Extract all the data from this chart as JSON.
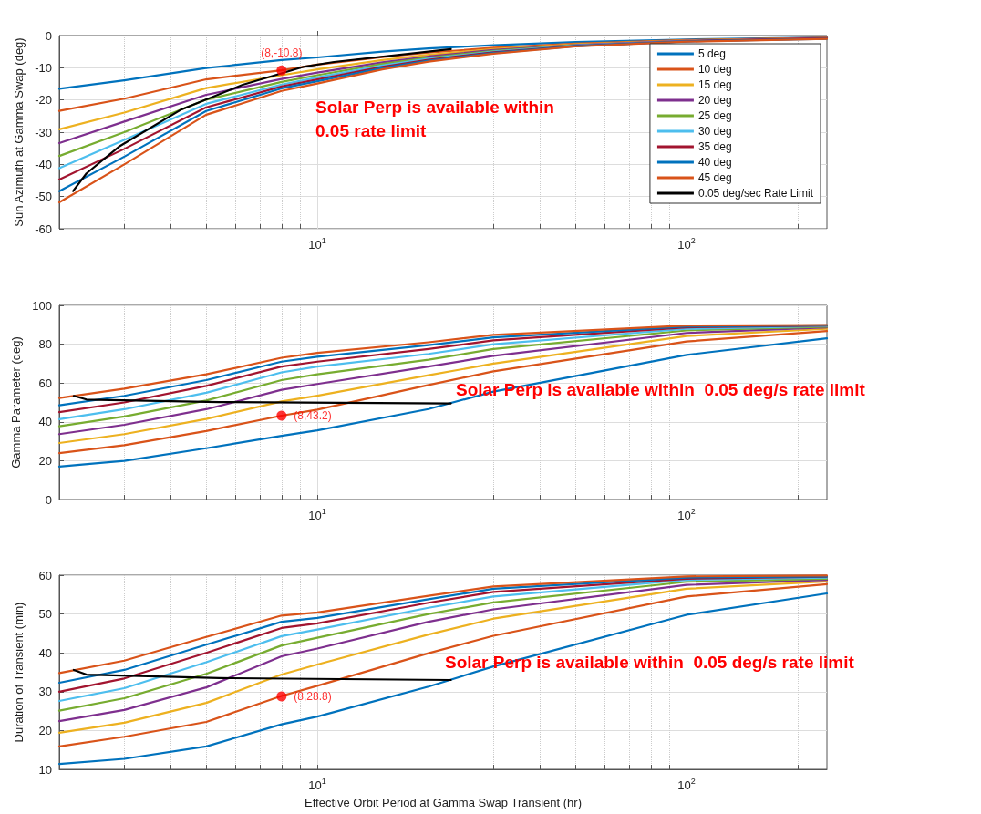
{
  "chart_data": [
    {
      "type": "line",
      "ylabel": "Sun Azimuth at Gamma Swap (deg)",
      "annotations": [
        "Solar Perp is available within\n0.05 rate limit"
      ],
      "log": "x",
      "grid": true,
      "legend": "top right",
      "marker": "none",
      "line_style": "solid",
      "xlim": [
        2,
        240
      ],
      "ylim": [
        -60,
        0
      ],
      "xticks": [
        {
          "value": 2,
          "label": null
        },
        {
          "value": 3,
          "label": null
        },
        {
          "value": 4,
          "label": null
        },
        {
          "value": 5,
          "label": null
        },
        {
          "value": 6,
          "label": null
        },
        {
          "value": 7,
          "label": null
        },
        {
          "value": 8,
          "label": null
        },
        {
          "value": 9,
          "label": null
        },
        {
          "value": 10,
          "label": "10$^{1}$"
        },
        {
          "value": 20,
          "label": null
        },
        {
          "value": 30,
          "label": null
        },
        {
          "value": 40,
          "label": null
        },
        {
          "value": 50,
          "label": null
        },
        {
          "value": 60,
          "label": null
        },
        {
          "value": 70,
          "label": null
        },
        {
          "value": 80,
          "label": null
        },
        {
          "value": 90,
          "label": null
        },
        {
          "value": 100,
          "label": "10$^{2}$"
        },
        {
          "value": 200,
          "label": null
        }
      ],
      "yticks": [
        -60,
        -50,
        -40,
        -30,
        -20,
        -10,
        0
      ],
      "x": [
        2,
        3,
        5,
        8,
        10,
        15,
        20,
        30,
        50,
        100,
        240
      ],
      "series": [
        {
          "name": "5 deg",
          "color": "#0072bd",
          "values": [
            -16.5,
            -13.9,
            -10.1,
            -7.6,
            -6.8,
            -5.0,
            -4.0,
            -3.0,
            -2.0,
            -1.2,
            -0.6
          ]
        },
        {
          "name": "10 deg",
          "color": "#d95319",
          "values": [
            -23.4,
            -19.6,
            -13.6,
            -10.8,
            -9.0,
            -6.7,
            -5.3,
            -3.8,
            -2.5,
            -1.4,
            -0.7
          ]
        },
        {
          "name": "15 deg",
          "color": "#edb120",
          "values": [
            -29.1,
            -23.9,
            -16.3,
            -12.3,
            -10.5,
            -7.6,
            -6.0,
            -4.2,
            -2.7,
            -1.5,
            -0.8
          ]
        },
        {
          "name": "20 deg",
          "color": "#7e2f8e",
          "values": [
            -33.4,
            -26.7,
            -18.4,
            -13.5,
            -11.5,
            -8.3,
            -6.5,
            -4.5,
            -2.9,
            -1.6,
            -0.8
          ]
        },
        {
          "name": "25 deg",
          "color": "#77ac30",
          "values": [
            -37.4,
            -30.0,
            -19.9,
            -14.4,
            -12.3,
            -8.8,
            -6.9,
            -4.8,
            -3.0,
            null,
            null
          ]
        },
        {
          "name": "30 deg",
          "color": "#4dbeee",
          "values": [
            -41.2,
            -32.4,
            -21.2,
            -15.2,
            -13.0,
            -9.3,
            -7.2,
            -5.0,
            -3.1,
            -1.7,
            null
          ]
        },
        {
          "name": "35 deg",
          "color": "#a2142f",
          "values": [
            -44.7,
            -35.2,
            -22.3,
            -15.8,
            -13.6,
            -9.7,
            -7.5,
            -5.2,
            -3.2,
            -1.8,
            -0.9
          ]
        },
        {
          "name": "40 deg",
          "color": "#0072bd",
          "values": [
            -48.3,
            -37.6,
            -23.4,
            -16.4,
            -14.2,
            -10.1,
            -7.8,
            -5.4,
            -3.3,
            -1.8,
            -1.0
          ]
        },
        {
          "name": "45 deg",
          "color": "#d95319",
          "values": [
            -51.8,
            -40.0,
            -24.6,
            -17.2,
            -14.9,
            -10.5,
            -8.1,
            -5.6,
            -3.4,
            -1.9,
            -1.0
          ]
        },
        {
          "name": "0.05 deg/sec Rate Limit",
          "color": "#000000",
          "x": [
            2.18,
            2.37,
            2.92,
            4.29,
            6.28,
            9.18,
            11.1,
            23
          ],
          "values": [
            -48.3,
            -42.8,
            -34.3,
            -22.9,
            -15.3,
            -9.7,
            -8.2,
            -4.2
          ]
        },
        {
          "type": "scatter",
          "marker": "circle",
          "color": "#ff0000",
          "x": [
            8
          ],
          "values": [
            -10.8
          ],
          "value_labels": [
            "(8,-10.8)"
          ]
        }
      ]
    },
    {
      "type": "line",
      "ylabel": "Gamma Parameter (deg)",
      "annotations": [
        "Solar Perp is available within  0.05 deg/s rate limit"
      ],
      "log": "x",
      "grid": true,
      "marker": "none",
      "line_style": "solid",
      "xlim": [
        2,
        240
      ],
      "ylim": [
        0,
        100
      ],
      "xticks": [
        {
          "value": 2,
          "label": null
        },
        {
          "value": 3,
          "label": null
        },
        {
          "value": 4,
          "label": null
        },
        {
          "value": 5,
          "label": null
        },
        {
          "value": 6,
          "label": null
        },
        {
          "value": 7,
          "label": null
        },
        {
          "value": 8,
          "label": null
        },
        {
          "value": 9,
          "label": null
        },
        {
          "value": 10,
          "label": "10$^{1}$"
        },
        {
          "value": 20,
          "label": null
        },
        {
          "value": 30,
          "label": null
        },
        {
          "value": 40,
          "label": null
        },
        {
          "value": 50,
          "label": null
        },
        {
          "value": 60,
          "label": null
        },
        {
          "value": 70,
          "label": null
        },
        {
          "value": 80,
          "label": null
        },
        {
          "value": 90,
          "label": null
        },
        {
          "value": 100,
          "label": "10$^{2}$"
        },
        {
          "value": 200,
          "label": null
        }
      ],
      "yticks": [
        0,
        20,
        40,
        60,
        80,
        100
      ],
      "x": [
        2,
        3,
        5,
        8,
        10,
        20,
        30,
        100,
        240
      ],
      "series": [
        {
          "color": "#0072bd",
          "values": [
            17.0,
            19.9,
            26.4,
            32.8,
            35.6,
            46.6,
            55.6,
            74.5,
            83.0
          ]
        },
        {
          "color": "#d95319",
          "values": [
            23.9,
            28.0,
            35.3,
            43.2,
            46.3,
            59.0,
            66.0,
            81.4,
            86.8
          ]
        },
        {
          "color": "#edb120",
          "values": [
            29.1,
            33.7,
            41.5,
            50.5,
            53.5,
            64.0,
            70.0,
            84.2,
            87.9
          ]
        },
        {
          "color": "#7e2f8e",
          "values": [
            33.7,
            38.5,
            46.5,
            56.5,
            59.5,
            68.5,
            74.0,
            85.8,
            88.7
          ]
        },
        {
          "color": "#77ac30",
          "values": [
            37.7,
            42.8,
            51.0,
            61.5,
            64.5,
            72.0,
            77.5,
            87.1,
            89.0
          ]
        },
        {
          "color": "#4dbeee",
          "values": [
            41.4,
            46.5,
            55.0,
            65.5,
            68.5,
            75.0,
            80.0,
            87.9,
            89.4
          ]
        },
        {
          "color": "#a2142f",
          "values": [
            45.0,
            50.0,
            58.5,
            68.5,
            71.0,
            77.5,
            82.0,
            88.7,
            89.6
          ]
        },
        {
          "color": "#0072bd",
          "values": [
            48.5,
            53.4,
            61.5,
            71.0,
            73.5,
            79.5,
            83.5,
            89.1,
            89.7
          ]
        },
        {
          "color": "#d95319",
          "values": [
            52.3,
            57.1,
            64.5,
            73.0,
            75.5,
            81.0,
            84.8,
            89.6,
            89.9
          ]
        },
        {
          "color": "#000000",
          "x": [
            2.19,
            2.37,
            5.42,
            23
          ],
          "values": [
            53.4,
            51.5,
            50.2,
            49.5
          ]
        },
        {
          "type": "scatter",
          "marker": "circle",
          "color": "#ff0000",
          "x": [
            8
          ],
          "values": [
            43.2
          ],
          "value_labels": [
            "(8,43.2)"
          ]
        }
      ]
    },
    {
      "type": "line",
      "xlabel": "Effective Orbit Period at Gamma Swap Transient (hr)",
      "ylabel": "Duration of Transient (min)",
      "annotations": [
        "Solar Perp is available within  0.05 deg/s rate limit"
      ],
      "log": "x",
      "grid": true,
      "marker": "none",
      "line_style": "solid",
      "xlim": [
        2,
        240
      ],
      "ylim": [
        10,
        60
      ],
      "xticks": [
        {
          "value": 2,
          "label": null
        },
        {
          "value": 3,
          "label": null
        },
        {
          "value": 4,
          "label": null
        },
        {
          "value": 5,
          "label": null
        },
        {
          "value": 6,
          "label": null
        },
        {
          "value": 7,
          "label": null
        },
        {
          "value": 8,
          "label": null
        },
        {
          "value": 9,
          "label": null
        },
        {
          "value": 10,
          "label": "10$^{1}$"
        },
        {
          "value": 20,
          "label": null
        },
        {
          "value": 30,
          "label": null
        },
        {
          "value": 40,
          "label": null
        },
        {
          "value": 50,
          "label": null
        },
        {
          "value": 60,
          "label": null
        },
        {
          "value": 70,
          "label": null
        },
        {
          "value": 80,
          "label": null
        },
        {
          "value": 90,
          "label": null
        },
        {
          "value": 100,
          "label": "10$^{2}$"
        },
        {
          "value": 200,
          "label": null
        }
      ],
      "yticks": [
        10,
        20,
        30,
        40,
        50,
        60
      ],
      "x": [
        2,
        3,
        5,
        8,
        10,
        20,
        30,
        100,
        240
      ],
      "series": [
        {
          "color": "#0072bd",
          "values": [
            11.4,
            12.7,
            15.9,
            21.6,
            23.6,
            31.3,
            36.5,
            49.8,
            55.3
          ]
        },
        {
          "color": "#d95319",
          "values": [
            15.9,
            18.4,
            22.2,
            28.9,
            31.5,
            39.9,
            44.4,
            54.5,
            57.7
          ]
        },
        {
          "color": "#edb120",
          "values": [
            19.4,
            22.0,
            27.1,
            34.4,
            37.0,
            44.7,
            48.8,
            56.5,
            58.4
          ]
        },
        {
          "color": "#7e2f8e",
          "values": [
            22.4,
            25.3,
            31.1,
            39.1,
            41.1,
            48.0,
            51.2,
            57.5,
            58.8
          ]
        },
        {
          "color": "#77ac30",
          "values": [
            25.1,
            28.3,
            34.6,
            41.9,
            43.9,
            50.0,
            53.0,
            58.3,
            59.1
          ]
        },
        {
          "color": "#4dbeee",
          "values": [
            27.6,
            30.9,
            37.6,
            44.3,
            46.0,
            51.6,
            54.5,
            58.8,
            59.4
          ]
        },
        {
          "color": "#a2142f",
          "values": [
            30.0,
            33.4,
            40.0,
            46.4,
            47.6,
            52.9,
            55.7,
            59.1,
            59.6
          ]
        },
        {
          "color": "#0072bd",
          "values": [
            32.3,
            35.6,
            42.1,
            48.0,
            49.0,
            53.8,
            56.5,
            59.4,
            59.7
          ]
        },
        {
          "color": "#d95319",
          "values": [
            34.8,
            38.0,
            44.1,
            49.6,
            50.4,
            54.7,
            57.1,
            59.7,
            59.9
          ]
        },
        {
          "color": "#000000",
          "x": [
            2.19,
            2.37,
            5.42,
            23
          ],
          "values": [
            35.6,
            34.4,
            33.5,
            33.0
          ]
        },
        {
          "type": "scatter",
          "marker": "circle",
          "color": "#ff0000",
          "x": [
            8
          ],
          "values": [
            28.8
          ],
          "value_labels": [
            "(8,28.8)"
          ]
        }
      ]
    }
  ]
}
